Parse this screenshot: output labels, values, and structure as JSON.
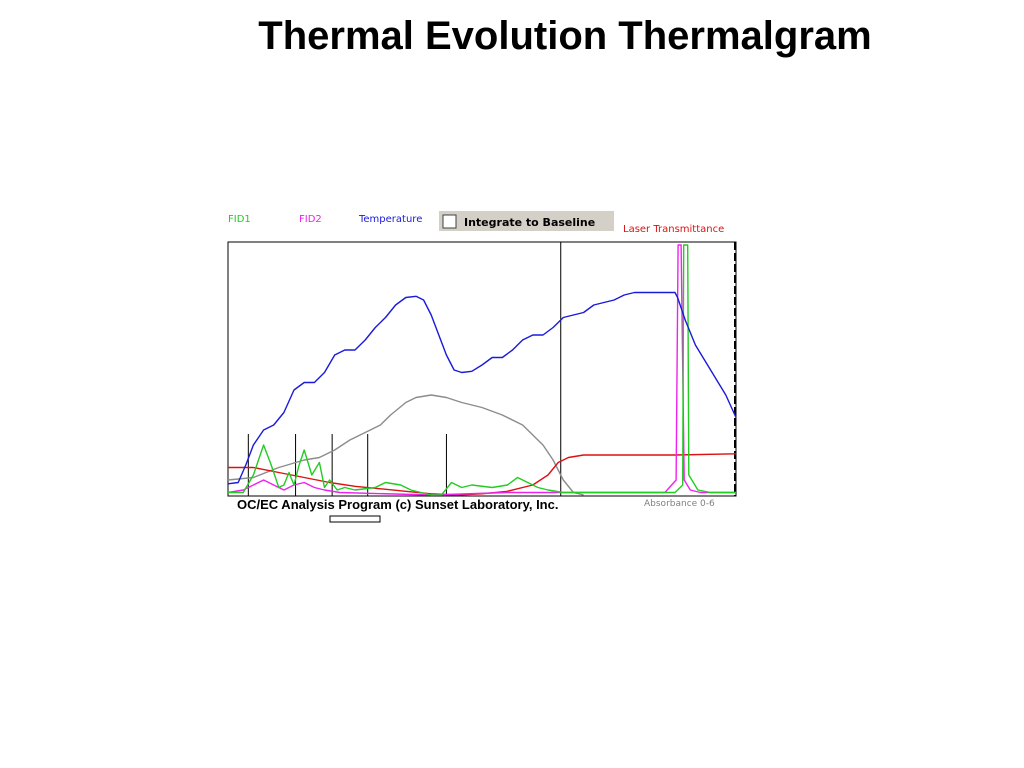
{
  "slide": {
    "title": "Thermal Evolution Thermalgram"
  },
  "toolbar": {
    "integrate_label": "Integrate to Baseline",
    "integrate_checked": false
  },
  "footer": {
    "program_label": "OC/EC Analysis Program (c) Sunset Laboratory, Inc.",
    "absorbance_label": "Absorbance 0-6"
  },
  "colors": {
    "fid1": "#22cc22",
    "fid2": "#ee22ee",
    "temperature": "#1a1adb",
    "laser": "#dd1111",
    "gray": "#8c8c8c"
  },
  "chart_data": {
    "type": "line",
    "title": "",
    "xlabel": "",
    "ylabel": "",
    "xlim": [
      0,
      1
    ],
    "ylim": [
      0,
      1
    ],
    "grid": false,
    "legend_position": "top",
    "series": [
      {
        "name": "Temperature",
        "color": "#1a1adb",
        "points": [
          [
            0.0,
            0.045
          ],
          [
            0.02,
            0.05
          ],
          [
            0.035,
            0.12
          ],
          [
            0.05,
            0.2
          ],
          [
            0.07,
            0.26
          ],
          [
            0.09,
            0.28
          ],
          [
            0.11,
            0.33
          ],
          [
            0.13,
            0.42
          ],
          [
            0.15,
            0.45
          ],
          [
            0.17,
            0.45
          ],
          [
            0.19,
            0.49
          ],
          [
            0.21,
            0.56
          ],
          [
            0.23,
            0.58
          ],
          [
            0.25,
            0.58
          ],
          [
            0.27,
            0.62
          ],
          [
            0.29,
            0.67
          ],
          [
            0.31,
            0.71
          ],
          [
            0.33,
            0.76
          ],
          [
            0.35,
            0.79
          ],
          [
            0.37,
            0.795
          ],
          [
            0.385,
            0.78
          ],
          [
            0.4,
            0.72
          ],
          [
            0.415,
            0.64
          ],
          [
            0.43,
            0.56
          ],
          [
            0.445,
            0.5
          ],
          [
            0.46,
            0.49
          ],
          [
            0.48,
            0.495
          ],
          [
            0.5,
            0.52
          ],
          [
            0.52,
            0.55
          ],
          [
            0.54,
            0.55
          ],
          [
            0.56,
            0.58
          ],
          [
            0.58,
            0.62
          ],
          [
            0.6,
            0.64
          ],
          [
            0.62,
            0.64
          ],
          [
            0.64,
            0.67
          ],
          [
            0.66,
            0.71
          ],
          [
            0.68,
            0.72
          ],
          [
            0.7,
            0.73
          ],
          [
            0.72,
            0.76
          ],
          [
            0.74,
            0.77
          ],
          [
            0.76,
            0.78
          ],
          [
            0.78,
            0.8
          ],
          [
            0.8,
            0.81
          ],
          [
            0.84,
            0.81
          ],
          [
            0.88,
            0.81
          ],
          [
            0.885,
            0.79
          ],
          [
            0.9,
            0.7
          ],
          [
            0.92,
            0.6
          ],
          [
            0.95,
            0.5
          ],
          [
            0.98,
            0.4
          ],
          [
            1.0,
            0.31
          ]
        ]
      },
      {
        "name": "",
        "color": "#8c8c8c",
        "points": [
          [
            0.0,
            0.06
          ],
          [
            0.05,
            0.07
          ],
          [
            0.1,
            0.11
          ],
          [
            0.15,
            0.14
          ],
          [
            0.18,
            0.15
          ],
          [
            0.21,
            0.18
          ],
          [
            0.24,
            0.22
          ],
          [
            0.27,
            0.25
          ],
          [
            0.3,
            0.28
          ],
          [
            0.32,
            0.32
          ],
          [
            0.35,
            0.37
          ],
          [
            0.37,
            0.39
          ],
          [
            0.4,
            0.4
          ],
          [
            0.43,
            0.39
          ],
          [
            0.46,
            0.37
          ],
          [
            0.5,
            0.35
          ],
          [
            0.54,
            0.32
          ],
          [
            0.58,
            0.28
          ],
          [
            0.62,
            0.2
          ],
          [
            0.64,
            0.14
          ],
          [
            0.66,
            0.06
          ],
          [
            0.68,
            0.01
          ],
          [
            0.7,
            0.0
          ]
        ]
      },
      {
        "name": "FID1",
        "color": "#22cc22",
        "points": [
          [
            0.0,
            0.01
          ],
          [
            0.03,
            0.01
          ],
          [
            0.05,
            0.08
          ],
          [
            0.07,
            0.2
          ],
          [
            0.085,
            0.12
          ],
          [
            0.1,
            0.03
          ],
          [
            0.11,
            0.04
          ],
          [
            0.12,
            0.09
          ],
          [
            0.13,
            0.04
          ],
          [
            0.14,
            0.12
          ],
          [
            0.15,
            0.18
          ],
          [
            0.165,
            0.08
          ],
          [
            0.18,
            0.13
          ],
          [
            0.19,
            0.03
          ],
          [
            0.2,
            0.06
          ],
          [
            0.215,
            0.02
          ],
          [
            0.23,
            0.03
          ],
          [
            0.25,
            0.02
          ],
          [
            0.29,
            0.03
          ],
          [
            0.31,
            0.05
          ],
          [
            0.34,
            0.04
          ],
          [
            0.36,
            0.02
          ],
          [
            0.4,
            0.0
          ],
          [
            0.42,
            0.0
          ],
          [
            0.44,
            0.05
          ],
          [
            0.46,
            0.03
          ],
          [
            0.48,
            0.04
          ],
          [
            0.52,
            0.03
          ],
          [
            0.55,
            0.04
          ],
          [
            0.57,
            0.07
          ],
          [
            0.59,
            0.05
          ],
          [
            0.61,
            0.03
          ],
          [
            0.63,
            0.02
          ],
          [
            0.66,
            0.01
          ],
          [
            0.7,
            0.01
          ],
          [
            0.8,
            0.01
          ],
          [
            0.88,
            0.01
          ],
          [
            0.895,
            0.04
          ],
          [
            0.897,
            1.0
          ],
          [
            0.905,
            1.0
          ],
          [
            0.907,
            0.08
          ],
          [
            0.925,
            0.02
          ],
          [
            0.95,
            0.01
          ],
          [
            1.0,
            0.01
          ]
        ]
      },
      {
        "name": "FID2",
        "color": "#ee22ee",
        "points": [
          [
            0.0,
            0.01
          ],
          [
            0.03,
            0.02
          ],
          [
            0.05,
            0.04
          ],
          [
            0.07,
            0.06
          ],
          [
            0.09,
            0.04
          ],
          [
            0.11,
            0.02
          ],
          [
            0.13,
            0.04
          ],
          [
            0.15,
            0.05
          ],
          [
            0.17,
            0.03
          ],
          [
            0.19,
            0.02
          ],
          [
            0.22,
            0.01
          ],
          [
            0.4,
            0.0
          ],
          [
            0.55,
            0.01
          ],
          [
            0.6,
            0.01
          ],
          [
            0.7,
            0.01
          ],
          [
            0.86,
            0.01
          ],
          [
            0.882,
            0.06
          ],
          [
            0.886,
            1.0
          ],
          [
            0.892,
            1.0
          ],
          [
            0.898,
            0.06
          ],
          [
            0.91,
            0.02
          ],
          [
            0.93,
            0.01
          ],
          [
            1.0,
            0.01
          ]
        ]
      },
      {
        "name": "Laser Transmittance",
        "color": "#dd1111",
        "points": [
          [
            0.0,
            0.11
          ],
          [
            0.05,
            0.11
          ],
          [
            0.1,
            0.09
          ],
          [
            0.15,
            0.07
          ],
          [
            0.2,
            0.05
          ],
          [
            0.25,
            0.035
          ],
          [
            0.3,
            0.025
          ],
          [
            0.35,
            0.015
          ],
          [
            0.4,
            0.005
          ],
          [
            0.45,
            0.0
          ],
          [
            0.5,
            0.005
          ],
          [
            0.55,
            0.015
          ],
          [
            0.6,
            0.04
          ],
          [
            0.63,
            0.08
          ],
          [
            0.65,
            0.13
          ],
          [
            0.67,
            0.15
          ],
          [
            0.7,
            0.16
          ],
          [
            0.8,
            0.16
          ],
          [
            0.88,
            0.16
          ],
          [
            1.0,
            0.165
          ]
        ]
      }
    ],
    "markers_x": [
      0.04,
      0.133,
      0.205,
      0.275,
      0.43
    ],
    "split_x": 0.655
  }
}
